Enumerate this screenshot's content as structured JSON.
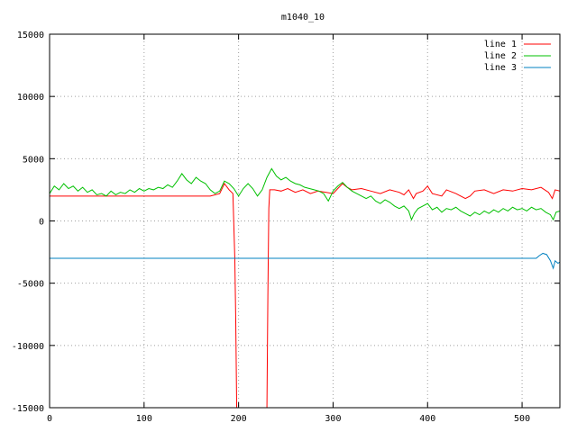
{
  "chart_data": {
    "type": "line",
    "title": "m1040_10",
    "xlabel": "",
    "ylabel": "",
    "xlim": [
      0,
      540
    ],
    "ylim": [
      -15000,
      15000
    ],
    "xticks": [
      0,
      100,
      200,
      300,
      400,
      500
    ],
    "yticks": [
      -15000,
      -10000,
      -5000,
      0,
      5000,
      10000,
      15000
    ],
    "grid": true,
    "legend_position": "top-right",
    "series": [
      {
        "name": "line 1",
        "color": "#ff0000",
        "points": [
          [
            0,
            2000
          ],
          [
            170,
            2000
          ],
          [
            180,
            2200
          ],
          [
            185,
            3000
          ],
          [
            190,
            2500
          ],
          [
            194,
            2200
          ],
          [
            196,
            -3000
          ],
          [
            197,
            -8000
          ],
          [
            198,
            -15000
          ],
          [
            230,
            -15000
          ],
          [
            231,
            -6000
          ],
          [
            232,
            1000
          ],
          [
            233,
            2500
          ],
          [
            238,
            2500
          ],
          [
            245,
            2400
          ],
          [
            252,
            2600
          ],
          [
            260,
            2300
          ],
          [
            268,
            2500
          ],
          [
            276,
            2200
          ],
          [
            284,
            2400
          ],
          [
            292,
            2300
          ],
          [
            300,
            2200
          ],
          [
            305,
            2600
          ],
          [
            310,
            3000
          ],
          [
            315,
            2700
          ],
          [
            320,
            2500
          ],
          [
            330,
            2600
          ],
          [
            340,
            2400
          ],
          [
            350,
            2200
          ],
          [
            360,
            2500
          ],
          [
            370,
            2300
          ],
          [
            375,
            2100
          ],
          [
            380,
            2500
          ],
          [
            385,
            1800
          ],
          [
            388,
            2200
          ],
          [
            395,
            2400
          ],
          [
            400,
            2800
          ],
          [
            405,
            2200
          ],
          [
            415,
            2000
          ],
          [
            420,
            2500
          ],
          [
            430,
            2200
          ],
          [
            440,
            1800
          ],
          [
            445,
            2000
          ],
          [
            450,
            2400
          ],
          [
            460,
            2500
          ],
          [
            470,
            2200
          ],
          [
            480,
            2500
          ],
          [
            490,
            2400
          ],
          [
            500,
            2600
          ],
          [
            510,
            2500
          ],
          [
            520,
            2700
          ],
          [
            528,
            2300
          ],
          [
            532,
            1800
          ],
          [
            535,
            2500
          ],
          [
            540,
            2400
          ]
        ]
      },
      {
        "name": "line 2",
        "color": "#00c000",
        "points": [
          [
            0,
            2200
          ],
          [
            5,
            2800
          ],
          [
            10,
            2500
          ],
          [
            15,
            3000
          ],
          [
            20,
            2600
          ],
          [
            25,
            2800
          ],
          [
            30,
            2400
          ],
          [
            35,
            2700
          ],
          [
            40,
            2300
          ],
          [
            45,
            2500
          ],
          [
            50,
            2100
          ],
          [
            55,
            2200
          ],
          [
            60,
            2000
          ],
          [
            65,
            2400
          ],
          [
            70,
            2100
          ],
          [
            75,
            2300
          ],
          [
            80,
            2200
          ],
          [
            85,
            2500
          ],
          [
            90,
            2300
          ],
          [
            95,
            2600
          ],
          [
            100,
            2400
          ],
          [
            105,
            2600
          ],
          [
            110,
            2500
          ],
          [
            115,
            2700
          ],
          [
            120,
            2600
          ],
          [
            125,
            2900
          ],
          [
            130,
            2700
          ],
          [
            135,
            3200
          ],
          [
            140,
            3800
          ],
          [
            145,
            3300
          ],
          [
            150,
            3000
          ],
          [
            155,
            3500
          ],
          [
            160,
            3200
          ],
          [
            165,
            3000
          ],
          [
            170,
            2500
          ],
          [
            175,
            2200
          ],
          [
            180,
            2400
          ],
          [
            185,
            3200
          ],
          [
            190,
            3000
          ],
          [
            195,
            2600
          ],
          [
            200,
            2000
          ],
          [
            205,
            2600
          ],
          [
            210,
            3000
          ],
          [
            215,
            2600
          ],
          [
            220,
            2000
          ],
          [
            225,
            2500
          ],
          [
            230,
            3500
          ],
          [
            235,
            4200
          ],
          [
            240,
            3600
          ],
          [
            245,
            3300
          ],
          [
            250,
            3500
          ],
          [
            255,
            3200
          ],
          [
            260,
            3000
          ],
          [
            265,
            2900
          ],
          [
            270,
            2700
          ],
          [
            275,
            2600
          ],
          [
            280,
            2500
          ],
          [
            285,
            2400
          ],
          [
            290,
            2200
          ],
          [
            295,
            1600
          ],
          [
            300,
            2400
          ],
          [
            305,
            2800
          ],
          [
            310,
            3100
          ],
          [
            315,
            2700
          ],
          [
            320,
            2400
          ],
          [
            325,
            2200
          ],
          [
            330,
            2000
          ],
          [
            335,
            1800
          ],
          [
            340,
            2000
          ],
          [
            345,
            1600
          ],
          [
            350,
            1400
          ],
          [
            355,
            1700
          ],
          [
            360,
            1500
          ],
          [
            365,
            1200
          ],
          [
            370,
            1000
          ],
          [
            375,
            1200
          ],
          [
            380,
            800
          ],
          [
            383,
            100
          ],
          [
            386,
            600
          ],
          [
            390,
            1000
          ],
          [
            395,
            1200
          ],
          [
            400,
            1400
          ],
          [
            405,
            900
          ],
          [
            410,
            1100
          ],
          [
            415,
            700
          ],
          [
            420,
            1000
          ],
          [
            425,
            900
          ],
          [
            430,
            1100
          ],
          [
            435,
            800
          ],
          [
            440,
            600
          ],
          [
            445,
            400
          ],
          [
            450,
            700
          ],
          [
            455,
            500
          ],
          [
            460,
            800
          ],
          [
            465,
            600
          ],
          [
            470,
            900
          ],
          [
            475,
            700
          ],
          [
            480,
            1000
          ],
          [
            485,
            800
          ],
          [
            490,
            1100
          ],
          [
            495,
            900
          ],
          [
            500,
            1000
          ],
          [
            505,
            800
          ],
          [
            510,
            1100
          ],
          [
            515,
            900
          ],
          [
            520,
            1000
          ],
          [
            525,
            700
          ],
          [
            530,
            500
          ],
          [
            533,
            100
          ],
          [
            536,
            700
          ],
          [
            540,
            800
          ]
        ]
      },
      {
        "name": "line 3",
        "color": "#0080c0",
        "points": [
          [
            0,
            -3000
          ],
          [
            515,
            -3000
          ],
          [
            518,
            -2800
          ],
          [
            522,
            -2600
          ],
          [
            526,
            -2700
          ],
          [
            530,
            -3200
          ],
          [
            533,
            -3800
          ],
          [
            535,
            -3200
          ],
          [
            538,
            -3400
          ],
          [
            540,
            -3300
          ]
        ]
      }
    ]
  }
}
